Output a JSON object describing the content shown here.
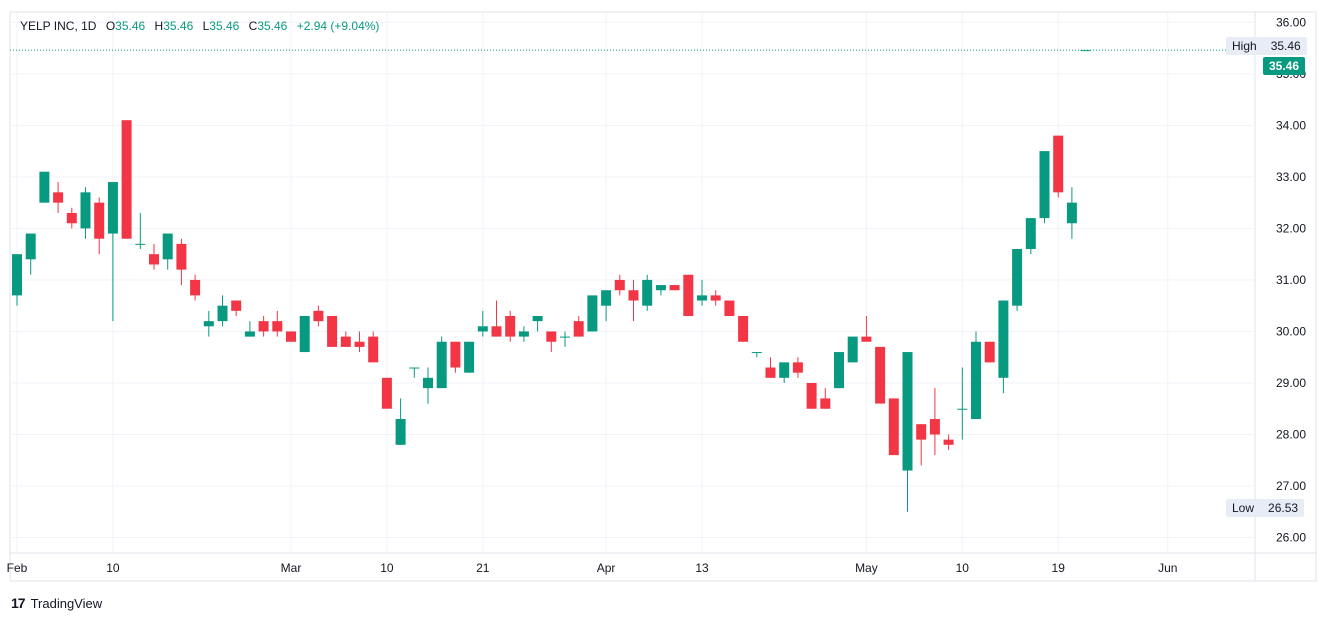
{
  "legend": {
    "symbol": "YELP INC, 1D",
    "o_label": "O",
    "o_value": "35.46",
    "h_label": "H",
    "h_value": "35.46",
    "l_label": "L",
    "l_value": "35.46",
    "c_label": "C",
    "c_value": "35.46",
    "change": "+2.94 (+9.04%)"
  },
  "high_tag": {
    "label": "High",
    "value": "35.46"
  },
  "low_tag": {
    "label": "Low",
    "value": "26.53"
  },
  "last_price": "35.46",
  "brand": "TradingView",
  "colors": {
    "up": "#089981",
    "down": "#f23645",
    "grid": "#f0f3fa",
    "axis_text": "#131722"
  },
  "chart_data": {
    "type": "candlestick",
    "y_ticks": [
      "26.00",
      "27.00",
      "28.00",
      "29.00",
      "30.00",
      "31.00",
      "32.00",
      "33.00",
      "34.00",
      "35.00",
      "36.00"
    ],
    "y_range": [
      25.7,
      36.2
    ],
    "x_ticks": [
      {
        "label": "Feb",
        "index": 0
      },
      {
        "label": "10",
        "index": 7
      },
      {
        "label": "Mar",
        "index": 20
      },
      {
        "label": "10",
        "index": 27
      },
      {
        "label": "21",
        "index": 34
      },
      {
        "label": "Apr",
        "index": 43
      },
      {
        "label": "13",
        "index": 50
      },
      {
        "label": "May",
        "index": 62
      },
      {
        "label": "10",
        "index": 69
      },
      {
        "label": "19",
        "index": 76
      },
      {
        "label": "Jun",
        "index": 84
      }
    ],
    "high_low_lines": {
      "high": 35.46,
      "low": 26.53
    },
    "candles": [
      [
        30.7,
        31.5,
        30.5,
        31.5
      ],
      [
        31.4,
        31.9,
        31.1,
        31.9
      ],
      [
        32.5,
        33.1,
        32.5,
        33.1
      ],
      [
        32.7,
        32.9,
        32.3,
        32.5
      ],
      [
        32.3,
        32.4,
        32.0,
        32.1
      ],
      [
        32.0,
        32.8,
        31.8,
        32.7
      ],
      [
        32.5,
        32.6,
        31.5,
        31.8
      ],
      [
        31.9,
        32.9,
        30.2,
        32.9
      ],
      [
        34.1,
        34.1,
        31.8,
        31.8
      ],
      [
        31.7,
        32.3,
        31.6,
        31.7
      ],
      [
        31.5,
        31.7,
        31.2,
        31.3
      ],
      [
        31.4,
        31.9,
        31.2,
        31.9
      ],
      [
        31.7,
        31.8,
        30.9,
        31.2
      ],
      [
        31.0,
        31.1,
        30.6,
        30.7
      ],
      [
        30.1,
        30.4,
        29.9,
        30.2
      ],
      [
        30.2,
        30.7,
        30.1,
        30.5
      ],
      [
        30.6,
        30.6,
        30.3,
        30.4
      ],
      [
        29.9,
        30.2,
        29.9,
        30.0
      ],
      [
        30.2,
        30.3,
        29.9,
        30.0
      ],
      [
        30.2,
        30.4,
        29.9,
        30.0
      ],
      [
        30.0,
        30.0,
        29.8,
        29.8
      ],
      [
        29.6,
        30.3,
        29.6,
        30.3
      ],
      [
        30.4,
        30.5,
        30.1,
        30.2
      ],
      [
        30.3,
        30.3,
        29.7,
        29.7
      ],
      [
        29.9,
        30.0,
        29.7,
        29.7
      ],
      [
        29.8,
        30.0,
        29.6,
        29.7
      ],
      [
        29.9,
        30.0,
        29.4,
        29.4
      ],
      [
        29.1,
        29.1,
        28.5,
        28.5
      ],
      [
        27.8,
        28.7,
        27.8,
        28.3
      ],
      [
        29.3,
        29.3,
        29.1,
        29.3
      ],
      [
        28.9,
        29.3,
        28.6,
        29.1
      ],
      [
        28.9,
        29.9,
        28.9,
        29.8
      ],
      [
        29.8,
        29.8,
        29.2,
        29.3
      ],
      [
        29.2,
        29.8,
        29.2,
        29.8
      ],
      [
        30.0,
        30.4,
        29.9,
        30.1
      ],
      [
        30.1,
        30.6,
        29.9,
        29.9
      ],
      [
        30.3,
        30.4,
        29.8,
        29.9
      ],
      [
        29.9,
        30.1,
        29.8,
        30.0
      ],
      [
        30.2,
        30.3,
        30.0,
        30.3
      ],
      [
        30.0,
        30.0,
        29.6,
        29.8
      ],
      [
        29.9,
        30.0,
        29.7,
        29.9
      ],
      [
        30.2,
        30.3,
        29.9,
        29.9
      ],
      [
        30.0,
        30.6,
        30.0,
        30.7
      ],
      [
        30.5,
        30.8,
        30.2,
        30.8
      ],
      [
        31.0,
        31.1,
        30.7,
        30.8
      ],
      [
        30.8,
        31.0,
        30.2,
        30.6
      ],
      [
        30.5,
        31.1,
        30.4,
        31.0
      ],
      [
        30.8,
        30.9,
        30.7,
        30.9
      ],
      [
        30.9,
        30.9,
        30.8,
        30.8
      ],
      [
        31.1,
        31.1,
        30.3,
        30.3
      ],
      [
        30.6,
        31.0,
        30.5,
        30.7
      ],
      [
        30.7,
        30.8,
        30.5,
        30.6
      ],
      [
        30.6,
        30.6,
        30.3,
        30.3
      ],
      [
        30.3,
        30.3,
        29.8,
        29.8
      ],
      [
        29.6,
        29.6,
        29.5,
        29.6
      ],
      [
        29.3,
        29.5,
        29.1,
        29.1
      ],
      [
        29.1,
        29.4,
        29.0,
        29.4
      ],
      [
        29.4,
        29.5,
        29.1,
        29.2
      ],
      [
        29.0,
        29.0,
        28.5,
        28.5
      ],
      [
        28.7,
        28.9,
        28.5,
        28.5
      ],
      [
        28.9,
        29.6,
        28.9,
        29.6
      ],
      [
        29.4,
        29.9,
        29.4,
        29.9
      ],
      [
        29.9,
        30.3,
        29.8,
        29.8
      ],
      [
        29.7,
        29.7,
        28.6,
        28.6
      ],
      [
        28.7,
        28.7,
        27.6,
        27.6
      ],
      [
        27.3,
        29.6,
        26.5,
        29.6
      ],
      [
        28.2,
        28.2,
        27.4,
        27.9
      ],
      [
        28.3,
        28.9,
        27.6,
        28.0
      ],
      [
        27.9,
        28.0,
        27.7,
        27.8
      ],
      [
        28.5,
        29.3,
        27.9,
        28.5
      ],
      [
        28.3,
        30.0,
        28.3,
        29.8
      ],
      [
        29.8,
        29.8,
        29.4,
        29.4
      ],
      [
        29.1,
        30.6,
        28.8,
        30.6
      ],
      [
        30.5,
        31.6,
        30.4,
        31.6
      ],
      [
        31.6,
        32.2,
        31.5,
        32.2
      ],
      [
        32.2,
        33.5,
        32.1,
        33.5
      ],
      [
        33.8,
        33.8,
        32.6,
        32.7
      ],
      [
        32.1,
        32.8,
        31.8,
        32.5
      ],
      [
        35.46,
        35.46,
        35.46,
        35.46
      ]
    ]
  }
}
